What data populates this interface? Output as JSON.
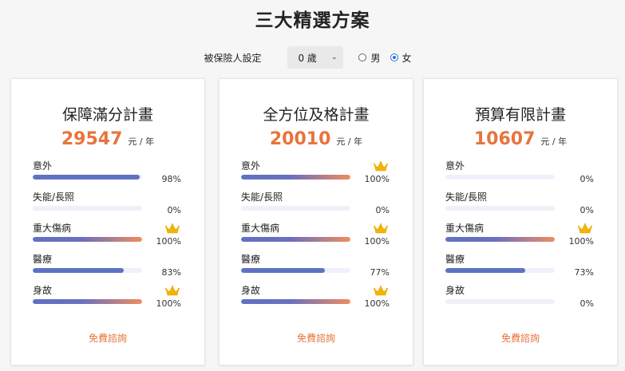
{
  "page_title": "三大精選方案",
  "insured": {
    "label": "被保險人設定",
    "age_value": "0 歲",
    "gender_options": [
      {
        "label": "男",
        "checked": false
      },
      {
        "label": "女",
        "checked": true
      }
    ]
  },
  "colors": {
    "accent": "#e8743b",
    "bar": "#5e72c4",
    "crown": "#f5b400"
  },
  "plans": [
    {
      "title": "保障滿分計畫",
      "price": "29547",
      "unit": "元 / 年",
      "consult": "免費諮詢",
      "coverages": [
        {
          "label": "意外",
          "percent_text": "98%",
          "value": 98,
          "top": false
        },
        {
          "label": "失能/長照",
          "percent_text": "0%",
          "value": 0,
          "top": false
        },
        {
          "label": "重大傷病",
          "percent_text": "100%",
          "value": 100,
          "top": true
        },
        {
          "label": "醫療",
          "percent_text": "83%",
          "value": 83,
          "top": false
        },
        {
          "label": "身故",
          "percent_text": "100%",
          "value": 100,
          "top": true
        }
      ]
    },
    {
      "title": "全方位及格計畫",
      "price": "20010",
      "unit": "元 / 年",
      "consult": "免費諮詢",
      "coverages": [
        {
          "label": "意外",
          "percent_text": "100%",
          "value": 100,
          "top": true
        },
        {
          "label": "失能/長照",
          "percent_text": "0%",
          "value": 0,
          "top": false
        },
        {
          "label": "重大傷病",
          "percent_text": "100%",
          "value": 100,
          "top": true
        },
        {
          "label": "醫療",
          "percent_text": "77%",
          "value": 77,
          "top": false
        },
        {
          "label": "身故",
          "percent_text": "100%",
          "value": 100,
          "top": true
        }
      ]
    },
    {
      "title": "預算有限計畫",
      "price": "10607",
      "unit": "元 / 年",
      "consult": "免費諮詢",
      "coverages": [
        {
          "label": "意外",
          "percent_text": "0%",
          "value": 0,
          "top": false
        },
        {
          "label": "失能/長照",
          "percent_text": "0%",
          "value": 0,
          "top": false
        },
        {
          "label": "重大傷病",
          "percent_text": "100%",
          "value": 100,
          "top": true
        },
        {
          "label": "醫療",
          "percent_text": "73%",
          "value": 73,
          "top": false
        },
        {
          "label": "身故",
          "percent_text": "0%",
          "value": 0,
          "top": false
        }
      ]
    }
  ]
}
